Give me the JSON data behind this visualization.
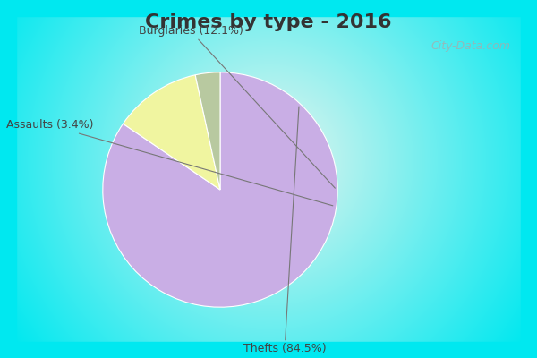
{
  "title": "Crimes by type - 2016",
  "slices": [
    {
      "label": "Thefts",
      "pct": 84.5,
      "color": "#c9aee5"
    },
    {
      "label": "Burglaries",
      "pct": 12.1,
      "color": "#f0f5a0"
    },
    {
      "label": "Assaults",
      "pct": 3.4,
      "color": "#b8c9a0"
    }
  ],
  "label_texts": [
    "Thefts (84.5%)",
    "Burglaries (12.1%)",
    "Assaults (3.4%)"
  ],
  "border_color": "#00e8f0",
  "bg_center_color": "#e8f5ee",
  "title_fontsize": 16,
  "label_fontsize": 9,
  "startangle": 90,
  "watermark": "City-Data.com",
  "title_color": "#333333"
}
